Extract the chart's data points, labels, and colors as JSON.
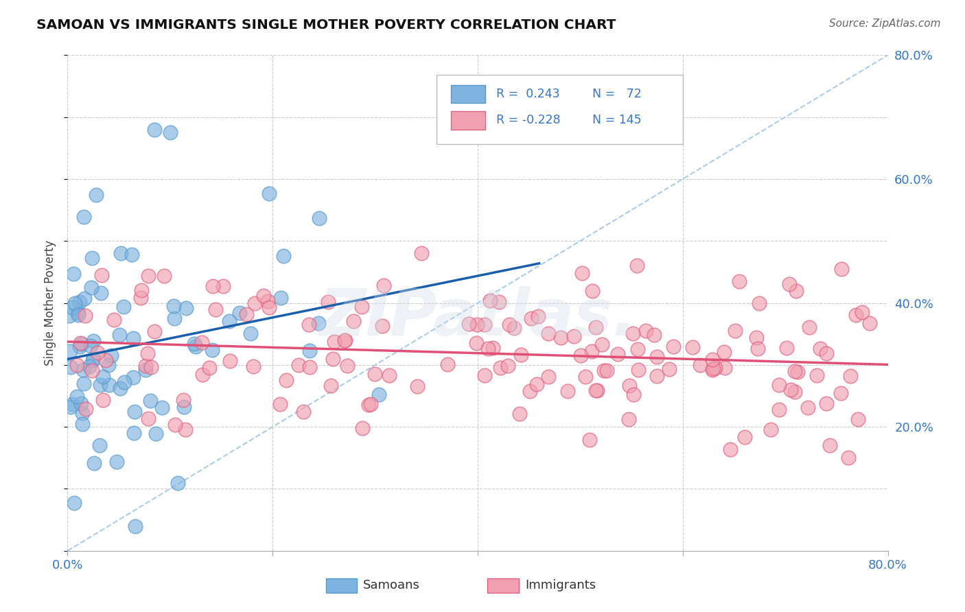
{
  "title": "SAMOAN VS IMMIGRANTS SINGLE MOTHER POVERTY CORRELATION CHART",
  "source": "Source: ZipAtlas.com",
  "ylabel": "Single Mother Poverty",
  "grid_color": "#cccccc",
  "background_color": "#ffffff",
  "samoan_color": "#7eb3e0",
  "immigrant_color": "#f0a0b0",
  "samoan_edge": "#5599cc",
  "immigrant_edge": "#e06080",
  "blue_line_color": "#1a5fad",
  "pink_line_color": "#e05075",
  "dashed_line_color": "#aaccee",
  "tick_color": "#3377cc",
  "samoan_R": 0.243,
  "immigrant_R": -0.228,
  "watermark_color": "#d0dce8"
}
